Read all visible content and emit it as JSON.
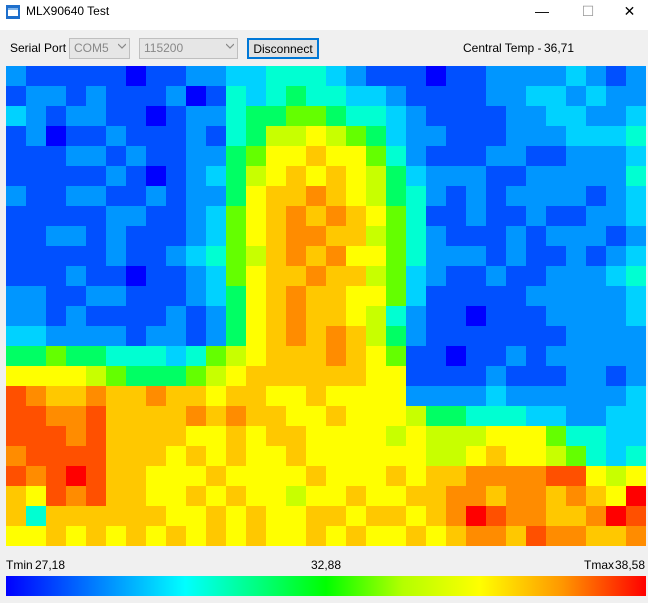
{
  "window": {
    "title": "MLX90640 Test",
    "minimize_glyph": "—",
    "maximize_glyph": "☐",
    "close_glyph": "✕"
  },
  "toolbar": {
    "serial_port_label": "Serial Port",
    "port_value": "COM5",
    "baud_value": "115200",
    "disconnect_label": "Disconnect",
    "central_temp_label": "Central Temp -",
    "central_temp_value": "36,71"
  },
  "legend": {
    "tmin_label": "Tmin",
    "tmin_value": "27,18",
    "tmid_value": "32,88",
    "tmax_label": "Tmax",
    "tmax_value": "38,58"
  },
  "colors": {
    "scale": [
      "#0000ff",
      "#0050ff",
      "#0096ff",
      "#00d2ff",
      "#00ffd2",
      "#00ff64",
      "#64ff00",
      "#c8ff00",
      "#ffff00",
      "#ffc800",
      "#ff8c00",
      "#ff5000",
      "#ff0000"
    ]
  },
  "thermal_frame": {
    "columns": 32,
    "rows": 24,
    "levels": [
      [
        2,
        1,
        1,
        1,
        1,
        1,
        0,
        1,
        1,
        2,
        2,
        3,
        3,
        4,
        4,
        4,
        3,
        2,
        1,
        1,
        1,
        0,
        1,
        1,
        2,
        2,
        2,
        2,
        3,
        2,
        1,
        2
      ],
      [
        1,
        2,
        2,
        1,
        2,
        1,
        1,
        1,
        2,
        0,
        1,
        4,
        3,
        4,
        5,
        4,
        4,
        3,
        3,
        2,
        1,
        1,
        1,
        1,
        2,
        2,
        3,
        3,
        2,
        3,
        2,
        2
      ],
      [
        3,
        2,
        1,
        2,
        2,
        1,
        1,
        0,
        1,
        2,
        2,
        4,
        5,
        5,
        6,
        6,
        5,
        4,
        4,
        3,
        2,
        1,
        1,
        1,
        1,
        2,
        2,
        3,
        3,
        2,
        2,
        3
      ],
      [
        1,
        2,
        0,
        1,
        1,
        2,
        1,
        1,
        1,
        2,
        1,
        4,
        5,
        7,
        7,
        8,
        7,
        6,
        5,
        3,
        2,
        2,
        1,
        1,
        1,
        2,
        2,
        2,
        3,
        3,
        3,
        4
      ],
      [
        1,
        1,
        1,
        2,
        2,
        1,
        2,
        1,
        1,
        2,
        2,
        5,
        6,
        8,
        8,
        9,
        8,
        8,
        6,
        4,
        2,
        1,
        1,
        1,
        2,
        2,
        1,
        1,
        2,
        2,
        2,
        3
      ],
      [
        1,
        1,
        1,
        1,
        1,
        2,
        1,
        0,
        1,
        2,
        3,
        5,
        7,
        8,
        9,
        8,
        9,
        8,
        7,
        5,
        3,
        2,
        2,
        2,
        1,
        1,
        2,
        2,
        2,
        2,
        2,
        4
      ],
      [
        2,
        1,
        1,
        2,
        2,
        1,
        1,
        2,
        1,
        2,
        2,
        5,
        8,
        9,
        9,
        10,
        9,
        8,
        7,
        5,
        4,
        2,
        1,
        2,
        1,
        2,
        2,
        2,
        2,
        1,
        2,
        3
      ],
      [
        1,
        1,
        1,
        1,
        1,
        2,
        2,
        1,
        1,
        2,
        3,
        6,
        8,
        9,
        10,
        9,
        10,
        9,
        8,
        6,
        4,
        1,
        1,
        2,
        1,
        1,
        2,
        1,
        1,
        2,
        2,
        3
      ],
      [
        1,
        1,
        2,
        2,
        1,
        2,
        1,
        1,
        1,
        2,
        3,
        6,
        8,
        9,
        10,
        10,
        9,
        9,
        7,
        6,
        4,
        2,
        1,
        1,
        1,
        2,
        1,
        2,
        2,
        2,
        1,
        2
      ],
      [
        1,
        1,
        1,
        1,
        1,
        2,
        1,
        1,
        2,
        3,
        4,
        6,
        7,
        9,
        10,
        9,
        10,
        8,
        8,
        6,
        4,
        2,
        2,
        2,
        1,
        2,
        1,
        1,
        2,
        1,
        2,
        3
      ],
      [
        1,
        1,
        1,
        2,
        1,
        1,
        0,
        1,
        1,
        2,
        3,
        6,
        8,
        9,
        9,
        10,
        9,
        9,
        7,
        6,
        3,
        2,
        1,
        1,
        2,
        1,
        1,
        2,
        2,
        2,
        3,
        4
      ],
      [
        2,
        2,
        1,
        1,
        2,
        2,
        1,
        1,
        1,
        2,
        3,
        5,
        8,
        9,
        10,
        9,
        9,
        8,
        8,
        6,
        3,
        1,
        1,
        1,
        1,
        1,
        2,
        2,
        2,
        2,
        2,
        3
      ],
      [
        2,
        2,
        1,
        2,
        1,
        1,
        1,
        1,
        2,
        1,
        2,
        5,
        8,
        9,
        10,
        9,
        9,
        8,
        7,
        4,
        2,
        1,
        1,
        0,
        1,
        1,
        1,
        2,
        2,
        2,
        2,
        3
      ],
      [
        3,
        3,
        2,
        2,
        2,
        2,
        1,
        2,
        2,
        1,
        2,
        5,
        8,
        9,
        10,
        9,
        10,
        9,
        7,
        5,
        2,
        1,
        1,
        1,
        1,
        1,
        1,
        1,
        2,
        2,
        2,
        2
      ],
      [
        5,
        5,
        6,
        5,
        5,
        4,
        4,
        4,
        3,
        4,
        6,
        7,
        8,
        9,
        9,
        9,
        10,
        9,
        8,
        6,
        1,
        1,
        0,
        1,
        1,
        2,
        1,
        2,
        2,
        2,
        2,
        2
      ],
      [
        8,
        8,
        8,
        8,
        7,
        6,
        5,
        5,
        5,
        6,
        7,
        8,
        9,
        9,
        9,
        9,
        9,
        9,
        8,
        8,
        1,
        1,
        1,
        1,
        2,
        1,
        1,
        1,
        2,
        2,
        1,
        2
      ],
      [
        11,
        10,
        9,
        9,
        10,
        9,
        9,
        10,
        9,
        9,
        8,
        9,
        9,
        8,
        8,
        9,
        8,
        8,
        8,
        8,
        2,
        2,
        2,
        2,
        3,
        2,
        2,
        2,
        2,
        2,
        2,
        3
      ],
      [
        11,
        11,
        10,
        10,
        11,
        9,
        9,
        9,
        9,
        10,
        9,
        10,
        9,
        9,
        8,
        8,
        9,
        8,
        8,
        8,
        7,
        5,
        5,
        4,
        4,
        4,
        3,
        3,
        2,
        2,
        3,
        3
      ],
      [
        11,
        11,
        11,
        10,
        11,
        9,
        9,
        9,
        9,
        8,
        8,
        9,
        8,
        9,
        9,
        8,
        8,
        8,
        8,
        7,
        8,
        7,
        7,
        7,
        8,
        8,
        8,
        6,
        4,
        4,
        3,
        3
      ],
      [
        10,
        11,
        11,
        11,
        11,
        9,
        9,
        9,
        8,
        9,
        8,
        9,
        8,
        8,
        9,
        8,
        8,
        8,
        8,
        8,
        8,
        7,
        7,
        8,
        9,
        8,
        8,
        7,
        6,
        4,
        3,
        4
      ],
      [
        11,
        10,
        11,
        12,
        11,
        9,
        9,
        8,
        8,
        8,
        9,
        8,
        8,
        8,
        8,
        9,
        8,
        8,
        8,
        9,
        8,
        9,
        9,
        10,
        10,
        10,
        10,
        11,
        11,
        8,
        7,
        8
      ],
      [
        9,
        8,
        11,
        10,
        11,
        9,
        9,
        8,
        8,
        9,
        8,
        9,
        8,
        8,
        7,
        8,
        8,
        9,
        8,
        8,
        9,
        9,
        10,
        10,
        9,
        10,
        10,
        9,
        10,
        9,
        8,
        12
      ],
      [
        9,
        4,
        9,
        9,
        9,
        9,
        9,
        9,
        8,
        8,
        9,
        8,
        9,
        8,
        8,
        9,
        9,
        8,
        9,
        9,
        8,
        9,
        10,
        12,
        11,
        10,
        10,
        9,
        9,
        10,
        12,
        11
      ],
      [
        8,
        8,
        9,
        8,
        9,
        8,
        9,
        8,
        9,
        8,
        9,
        8,
        9,
        8,
        8,
        9,
        8,
        9,
        8,
        8,
        9,
        8,
        9,
        10,
        10,
        9,
        11,
        10,
        10,
        9,
        9,
        10
      ]
    ]
  }
}
